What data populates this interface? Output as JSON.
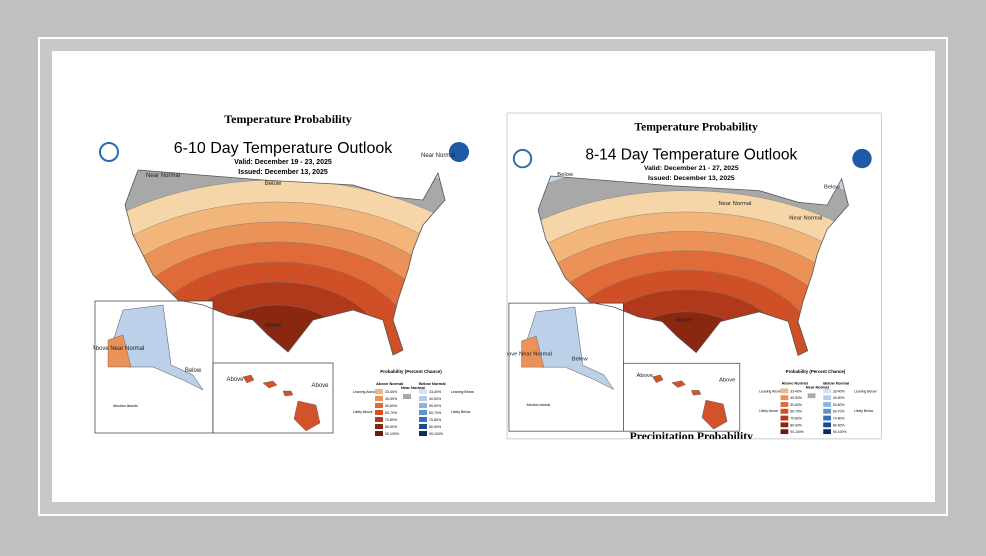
{
  "maps": [
    {
      "title": "Temperature Probability",
      "heading": "6-10 Day Temperature Outlook",
      "valid": "Valid:  December 19 - 23, 2025",
      "issued": "Issued:  December 13, 2025",
      "labels": [
        "Near Normal",
        "Below",
        "Near Normal",
        "Above",
        "Above Near Normal",
        "Below",
        "Above",
        "Above"
      ],
      "legend": {
        "title": "Probability (Percent Chance)",
        "above": "Above Normal",
        "near": "Near Normal",
        "below": "Below Normal",
        "leaning_above": "Leaning Above",
        "likely_above": "Likely Above",
        "leaning_below": "Leaning Below",
        "likely_below": "Likely Below",
        "ranges": [
          "33-40%",
          "40-50%",
          "50-60%",
          "60-70%",
          "70-80%",
          "80-90%",
          "90-100%"
        ]
      },
      "inset": "Aleutian Islands"
    },
    {
      "title": "Temperature Probability",
      "heading": "8-14 Day Temperature Outlook",
      "valid": "Valid:  December 21 - 27, 2025",
      "issued": "Issued:  December 13, 2025",
      "labels": [
        "Below",
        "Below",
        "Near Normal",
        "Near Normal",
        "Above",
        "Above Near Normal",
        "Below",
        "Above",
        "Above"
      ],
      "legend": {
        "title": "Probability (Percent Chance)",
        "above": "Above Normal",
        "near": "Near Normal",
        "below": "Below Normal",
        "leaning_above": "Leaning Above",
        "likely_above": "Likely Above",
        "leaning_below": "Leaning Below",
        "likely_below": "Likely Below",
        "ranges": [
          "33-40%",
          "40-50%",
          "50-60%",
          "60-70%",
          "70-80%",
          "80-90%",
          "90-100%"
        ]
      },
      "inset": "Aleutian Islands",
      "next_title": "Precipitation Probability"
    }
  ]
}
